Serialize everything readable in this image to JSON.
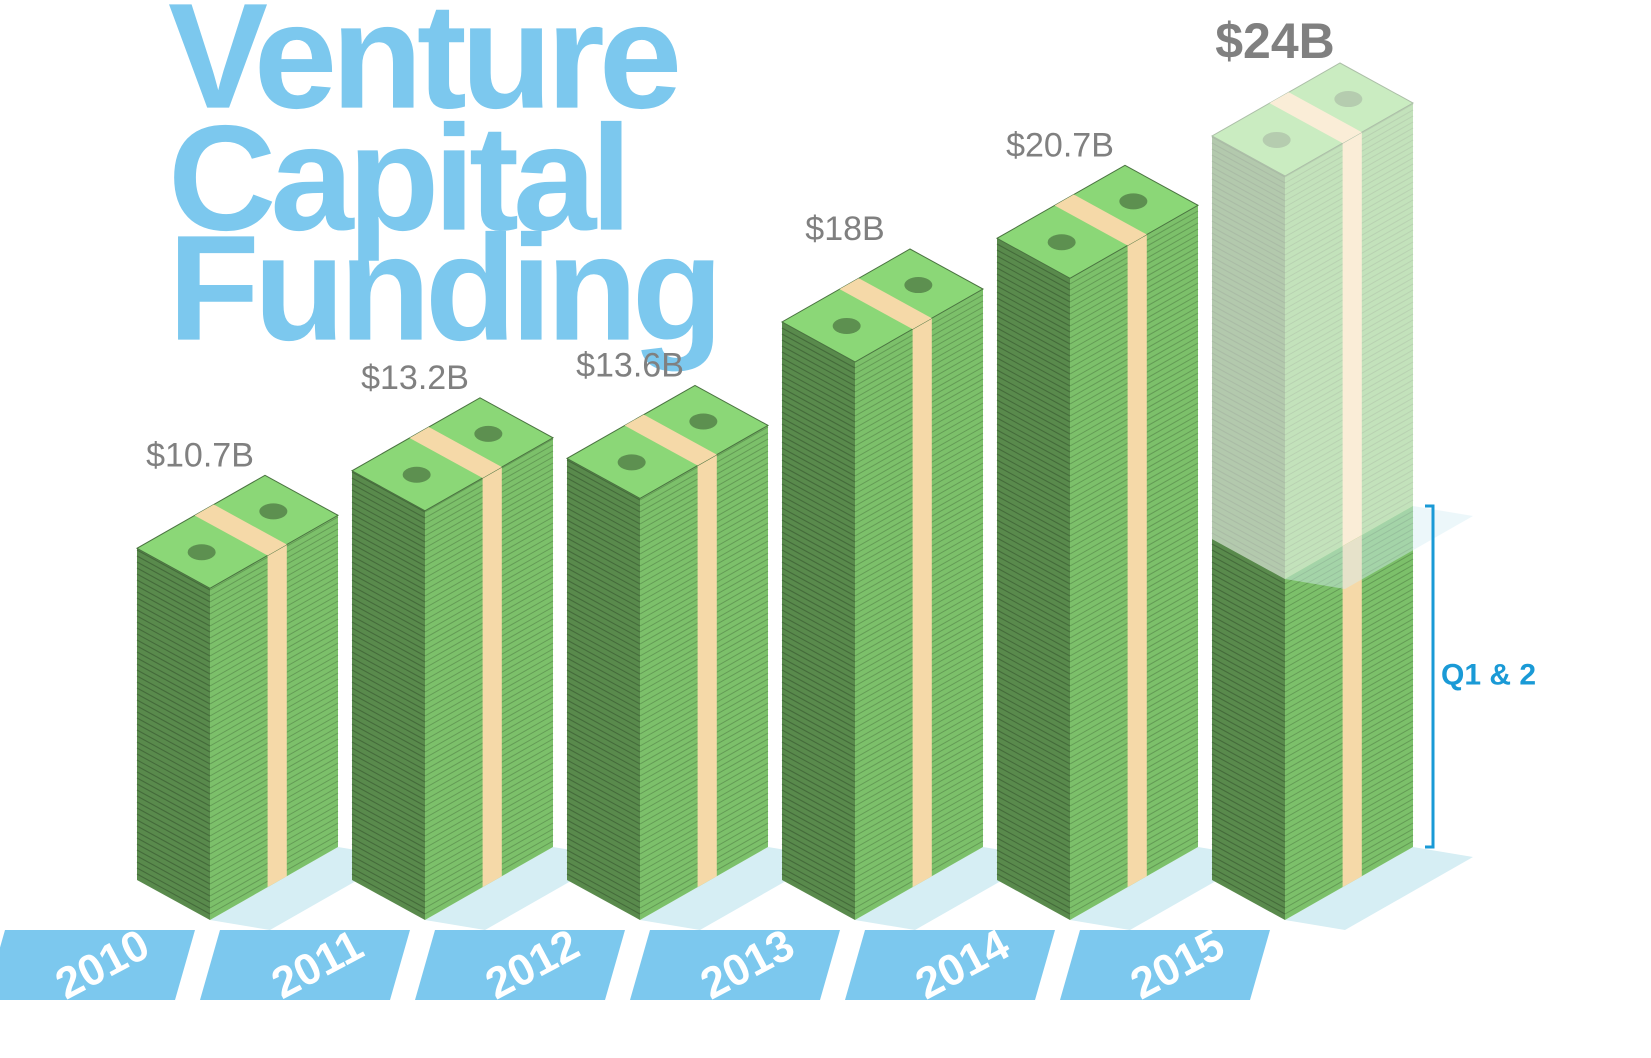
{
  "chart_data": {
    "type": "stack",
    "title_lines": [
      "Venture",
      "Capital",
      "Funding"
    ],
    "categories": [
      "2010",
      "2011",
      "2012",
      "2013",
      "2014",
      "2015"
    ],
    "values": [
      10.7,
      13.2,
      13.6,
      18,
      20.7,
      24
    ],
    "value_labels": [
      "$10.7B",
      "$13.2B",
      "$13.6B",
      "$18B",
      "$20.7B",
      "$24B"
    ],
    "ytd_value": 11,
    "ytd_label": "Q1 & 2",
    "color": "#7cc06a",
    "band_color": "#f5d9a8",
    "accent_color": "#7cc8ee"
  }
}
